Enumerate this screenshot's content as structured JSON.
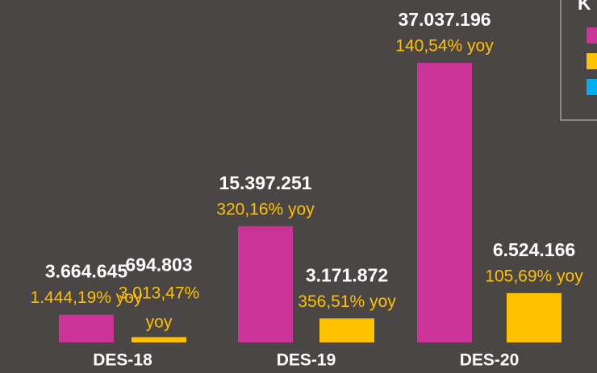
{
  "chart_data": {
    "type": "bar",
    "legend_title": "K",
    "categories": [
      "DES-18",
      "DES-19",
      "DES-20"
    ],
    "series": [
      {
        "color": "#cc3399",
        "values": [
          3664645,
          15397251,
          37037196
        ],
        "value_labels": [
          "3.664.645",
          "15.397.251",
          "37.037.196"
        ],
        "yoy_labels": [
          "1.444,19% yoy",
          "320,16% yoy",
          "140,54% yoy"
        ]
      },
      {
        "color": "#ffc000",
        "values": [
          694803,
          3171872,
          6524166
        ],
        "value_labels": [
          "694.803",
          "3.171.872",
          "6.524.166"
        ],
        "yoy_labels": [
          "3.013,47% yoy",
          "356,51% yoy",
          "105,69% yoy"
        ]
      }
    ],
    "ylim": [
      0,
      38000000
    ]
  }
}
